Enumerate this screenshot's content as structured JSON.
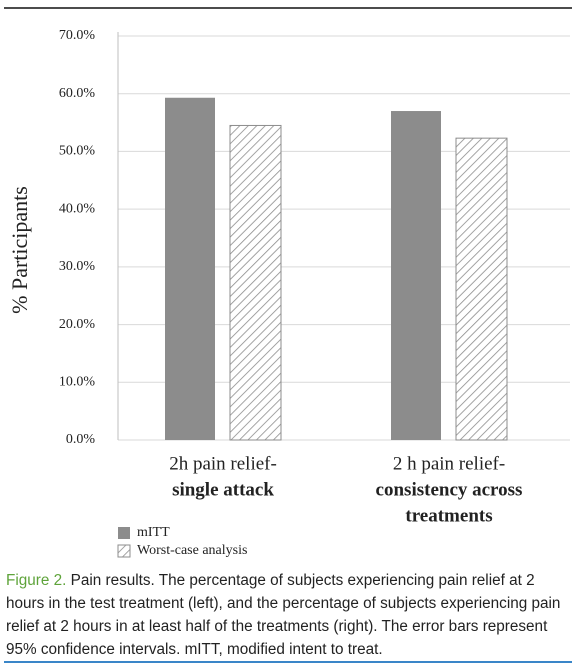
{
  "chart_data": {
    "type": "bar",
    "y_label": "% Participants",
    "categories": [
      [
        "2h pain relief-",
        "single attack"
      ],
      [
        "2 h pain relief-",
        "consistency across",
        "treatments"
      ]
    ],
    "series": [
      {
        "name": "mITT",
        "color": "#8c8c8c",
        "pattern": "solid",
        "values": [
          59.3,
          57.0
        ]
      },
      {
        "name": "Worst-case analysis",
        "color": "#8c8c8c",
        "pattern": "hatch",
        "values": [
          54.5,
          52.3
        ]
      }
    ],
    "ylim": [
      0,
      70
    ],
    "yticks": [
      {
        "value": 0,
        "label": "0.0%"
      },
      {
        "value": 10,
        "label": "10.0%"
      },
      {
        "value": 20,
        "label": "20.0%"
      },
      {
        "value": 30,
        "label": "30.0%"
      },
      {
        "value": 40,
        "label": "40.0%"
      },
      {
        "value": 50,
        "label": "50.0%"
      },
      {
        "value": 60,
        "label": "60.0%"
      },
      {
        "value": 70,
        "label": "70.0%"
      }
    ],
    "grid": true
  },
  "caption": {
    "label": "Figure 2.",
    "text": "Pain results. The percentage of subjects experiencing pain relief at 2 hours in the test treatment (left), and the percentage of subjects experiencing pain relief at 2 hours in at least half of the treatments (right). The error bars represent 95% confidence intervals. mITT, modified intent to treat."
  }
}
